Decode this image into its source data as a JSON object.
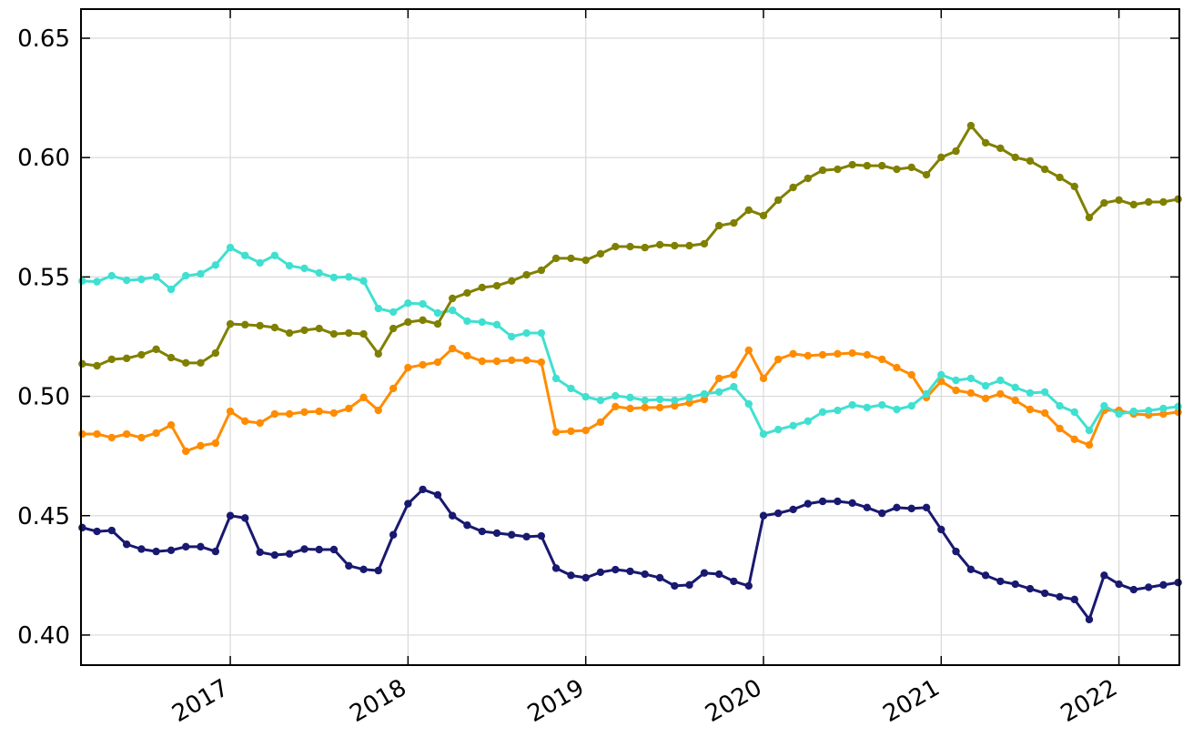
{
  "chart_data": {
    "type": "line",
    "x": [
      2016.167,
      2016.25,
      2016.333,
      2016.417,
      2016.5,
      2016.583,
      2016.667,
      2016.75,
      2016.833,
      2016.917,
      2017,
      2017.083,
      2017.167,
      2017.25,
      2017.333,
      2017.417,
      2017.5,
      2017.583,
      2017.667,
      2017.75,
      2017.833,
      2017.917,
      2018,
      2018.083,
      2018.167,
      2018.25,
      2018.333,
      2018.417,
      2018.5,
      2018.583,
      2018.667,
      2018.75,
      2018.833,
      2018.917,
      2019,
      2019.083,
      2019.167,
      2019.25,
      2019.333,
      2019.417,
      2019.5,
      2019.583,
      2019.667,
      2019.75,
      2019.833,
      2019.917,
      2020,
      2020.083,
      2020.167,
      2020.25,
      2020.333,
      2020.417,
      2020.5,
      2020.583,
      2020.667,
      2020.75,
      2020.833,
      2020.917,
      2021,
      2021.083,
      2021.167,
      2021.25,
      2021.333,
      2021.417,
      2021.5,
      2021.583,
      2021.667,
      2021.75,
      2021.833,
      2021.917,
      2022,
      2022.083,
      2022.167,
      2022.25,
      2022.333
    ],
    "series": [
      {
        "color": "#191970",
        "values": [
          0.445,
          0.4434,
          0.4438,
          0.438,
          0.436,
          0.435,
          0.4355,
          0.437,
          0.437,
          0.435,
          0.45,
          0.449,
          0.4347,
          0.4335,
          0.434,
          0.436,
          0.4358,
          0.4358,
          0.429,
          0.4275,
          0.427,
          0.442,
          0.455,
          0.461,
          0.4587,
          0.45,
          0.446,
          0.4434,
          0.4427,
          0.442,
          0.4412,
          0.4415,
          0.428,
          0.425,
          0.424,
          0.4263,
          0.4274,
          0.4267,
          0.4255,
          0.424,
          0.4206,
          0.421,
          0.426,
          0.4255,
          0.4225,
          0.4206,
          0.45,
          0.451,
          0.4526,
          0.455,
          0.456,
          0.456,
          0.4553,
          0.4534,
          0.451,
          0.4534,
          0.453,
          0.4534,
          0.4442,
          0.435,
          0.4275,
          0.425,
          0.4225,
          0.4213,
          0.4194,
          0.4175,
          0.416,
          0.4149,
          0.4065,
          0.425,
          0.4213,
          0.419,
          0.42,
          0.421,
          0.422
        ]
      },
      {
        "color": "#ff8c00",
        "values": [
          0.4842,
          0.4842,
          0.4827,
          0.4842,
          0.4827,
          0.4846,
          0.488,
          0.477,
          0.4793,
          0.4804,
          0.4937,
          0.4896,
          0.4888,
          0.4926,
          0.4926,
          0.4934,
          0.4937,
          0.493,
          0.4949,
          0.4995,
          0.4941,
          0.5033,
          0.512,
          0.5132,
          0.5143,
          0.52,
          0.517,
          0.5147,
          0.5147,
          0.5151,
          0.5151,
          0.5143,
          0.485,
          0.4854,
          0.4857,
          0.4892,
          0.4957,
          0.4949,
          0.4953,
          0.4953,
          0.496,
          0.4972,
          0.4987,
          0.5075,
          0.509,
          0.5193,
          0.5075,
          0.5155,
          0.5178,
          0.517,
          0.5174,
          0.5178,
          0.5181,
          0.5174,
          0.5155,
          0.512,
          0.509,
          0.4995,
          0.5063,
          0.5025,
          0.5014,
          0.4991,
          0.501,
          0.4983,
          0.4945,
          0.493,
          0.4865,
          0.482,
          0.4796,
          0.4941,
          0.4941,
          0.4926,
          0.4922,
          0.4926,
          0.4934
        ]
      },
      {
        "color": "#40e0d0",
        "values": [
          0.5483,
          0.548,
          0.5505,
          0.5486,
          0.549,
          0.55,
          0.5448,
          0.5505,
          0.5513,
          0.555,
          0.5623,
          0.559,
          0.5559,
          0.559,
          0.5547,
          0.5536,
          0.5517,
          0.5498,
          0.55,
          0.5483,
          0.5368,
          0.5353,
          0.539,
          0.5387,
          0.5349,
          0.536,
          0.5315,
          0.5311,
          0.53,
          0.525,
          0.5265,
          0.5265,
          0.5075,
          0.5033,
          0.4998,
          0.4983,
          0.5002,
          0.4995,
          0.4983,
          0.4987,
          0.4983,
          0.4995,
          0.501,
          0.5018,
          0.504,
          0.4968,
          0.4842,
          0.4861,
          0.4877,
          0.4896,
          0.4934,
          0.4941,
          0.4964,
          0.4953,
          0.4964,
          0.4945,
          0.496,
          0.501,
          0.509,
          0.5067,
          0.5075,
          0.5044,
          0.5067,
          0.5037,
          0.5014,
          0.5018,
          0.496,
          0.4934,
          0.4857,
          0.496,
          0.4926,
          0.4937,
          0.494,
          0.4949,
          0.4957
        ]
      },
      {
        "color": "#808000",
        "values": [
          0.5136,
          0.5128,
          0.5155,
          0.5159,
          0.5174,
          0.5197,
          0.5162,
          0.514,
          0.514,
          0.5181,
          0.5303,
          0.53,
          0.5296,
          0.5288,
          0.5265,
          0.5277,
          0.5284,
          0.5261,
          0.5265,
          0.5261,
          0.5178,
          0.5284,
          0.5311,
          0.5319,
          0.5303,
          0.541,
          0.5433,
          0.5456,
          0.5463,
          0.5483,
          0.5509,
          0.5528,
          0.5578,
          0.5578,
          0.557,
          0.5597,
          0.5627,
          0.5627,
          0.5623,
          0.5635,
          0.5631,
          0.5631,
          0.5639,
          0.5715,
          0.5726,
          0.578,
          0.5757,
          0.5822,
          0.5875,
          0.5913,
          0.5947,
          0.5951,
          0.597,
          0.5966,
          0.5966,
          0.5951,
          0.5959,
          0.5928,
          0.6001,
          0.6027,
          0.6134,
          0.6062,
          0.6039,
          0.6001,
          0.5986,
          0.5951,
          0.5917,
          0.5879,
          0.5749,
          0.581,
          0.5822,
          0.5803,
          0.5814,
          0.5814,
          0.5826
        ]
      }
    ],
    "xlim": [
      2016.16,
      2022.34
    ],
    "xticks": [
      2017,
      2018,
      2019,
      2020,
      2021,
      2022
    ],
    "ylim": [
      0.3874,
      0.6622
    ],
    "yticks": [
      {
        "value": 0.4,
        "label": "0.40"
      },
      0.45,
      {
        "value": 0.5,
        "label": "0.50"
      },
      0.55,
      {
        "value": 0.6,
        "label": "0.60"
      },
      0.65
    ],
    "grid": true
  }
}
